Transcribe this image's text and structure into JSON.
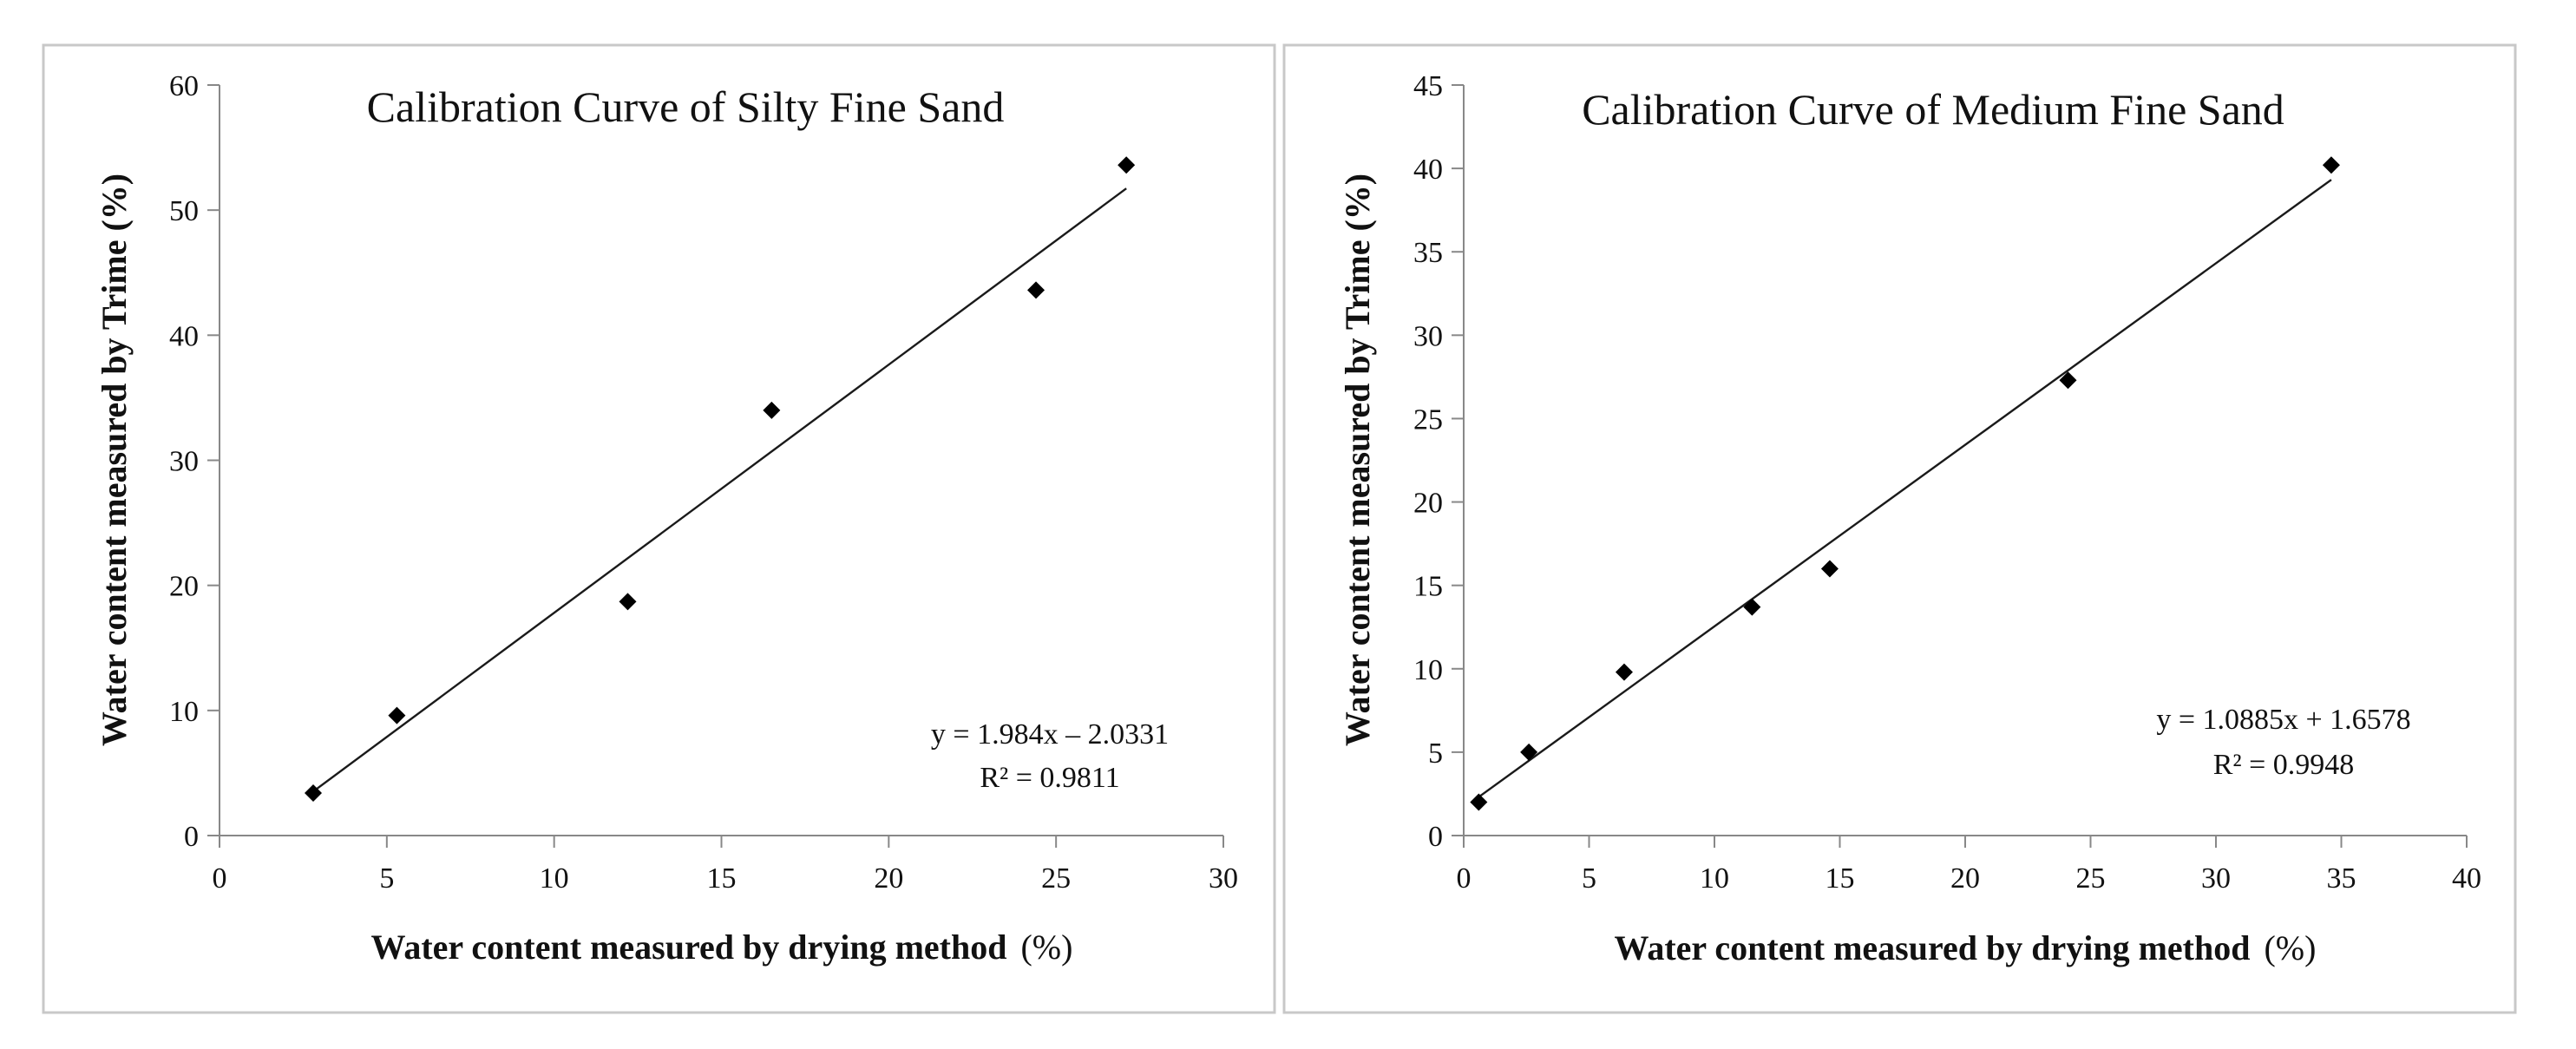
{
  "chart_data": [
    {
      "type": "scatter",
      "title": "Calibration Curve of Silty Fine Sand",
      "xlabel": "Water content measured by drying method",
      "xlabel_unit": "(%)",
      "ylabel": "Water content measured by Trime (%)",
      "xlim": [
        0,
        30
      ],
      "ylim": [
        0,
        60
      ],
      "xticks": [
        0,
        5,
        10,
        15,
        20,
        25,
        30
      ],
      "yticks": [
        0,
        10,
        20,
        30,
        40,
        50,
        60
      ],
      "points": [
        {
          "x": 2.8,
          "y": 3.4
        },
        {
          "x": 5.3,
          "y": 9.6
        },
        {
          "x": 12.2,
          "y": 18.7
        },
        {
          "x": 16.5,
          "y": 34.0
        },
        {
          "x": 24.4,
          "y": 43.6
        },
        {
          "x": 27.1,
          "y": 53.6
        }
      ],
      "trendline": {
        "slope": 1.984,
        "intercept": -2.0331,
        "x_from": 2.8,
        "x_to": 27.1
      },
      "equation": "y = 1.984x – 2.0331",
      "r_squared": "R² = 0.9811",
      "marker_color": "#000000"
    },
    {
      "type": "scatter",
      "title": "Calibration Curve of Medium Fine  Sand",
      "xlabel": "Water content measured by drying method",
      "xlabel_unit": "(%)",
      "ylabel": "Water content measured by Trime (%)",
      "xlim": [
        0,
        40
      ],
      "ylim": [
        0,
        45
      ],
      "xticks": [
        0,
        5,
        10,
        15,
        20,
        25,
        30,
        35,
        40
      ],
      "yticks": [
        0,
        5,
        10,
        15,
        20,
        25,
        30,
        35,
        40,
        45
      ],
      "points": [
        {
          "x": 0.6,
          "y": 2.0
        },
        {
          "x": 2.6,
          "y": 5.0
        },
        {
          "x": 6.4,
          "y": 9.8
        },
        {
          "x": 11.5,
          "y": 13.7
        },
        {
          "x": 14.6,
          "y": 16.0
        },
        {
          "x": 24.1,
          "y": 27.3
        },
        {
          "x": 34.6,
          "y": 40.2
        }
      ],
      "trendline": {
        "slope": 1.0885,
        "intercept": 1.6578,
        "x_from": 0.6,
        "x_to": 34.6
      },
      "equation": "y = 1.0885x + 1.6578",
      "r_squared": "R² = 0.9948",
      "marker_color": "#000000"
    }
  ]
}
